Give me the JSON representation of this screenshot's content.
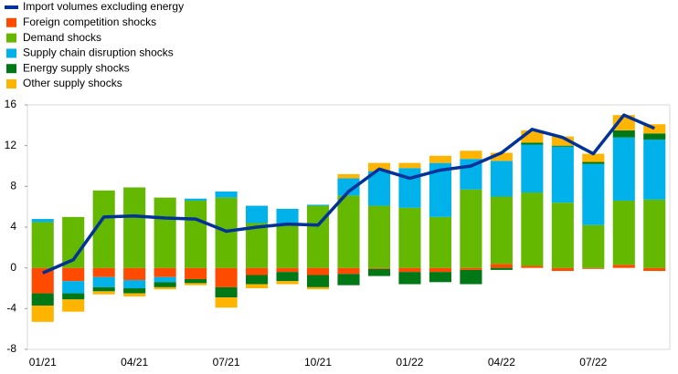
{
  "chart_data": {
    "type": "stacked-bar-line",
    "categories": [
      "01/21",
      null,
      null,
      "04/21",
      null,
      null,
      "07/21",
      null,
      null,
      "10/21",
      null,
      null,
      "01/22",
      null,
      null,
      "04/22",
      null,
      null,
      "07/22",
      null,
      null
    ],
    "line": {
      "name": "Import volumes excluding energy",
      "color": "#003299",
      "values": [
        -0.5,
        0.8,
        5.0,
        5.1,
        4.9,
        4.8,
        3.6,
        4.0,
        4.3,
        4.2,
        7.5,
        9.7,
        8.8,
        9.6,
        10.0,
        11.3,
        13.6,
        12.8,
        11.2,
        15.0,
        13.7
      ]
    },
    "series": [
      {
        "name": "Foreign competition shocks",
        "color": "#ff4b00",
        "values": [
          -2.5,
          -1.3,
          -0.9,
          -1.2,
          -0.9,
          -1.1,
          -1.9,
          -0.7,
          -0.4,
          -0.7,
          -0.6,
          -0.1,
          -0.4,
          -0.4,
          -0.2,
          0.4,
          0.2,
          -0.3,
          -0.1,
          0.3,
          -0.3
        ]
      },
      {
        "name": "Demand shocks",
        "color": "#65b800",
        "values": [
          4.5,
          5.0,
          7.6,
          7.9,
          6.9,
          6.6,
          6.9,
          4.4,
          4.3,
          6.1,
          7.1,
          6.1,
          5.9,
          5.0,
          7.7,
          6.6,
          7.2,
          6.4,
          4.2,
          6.3,
          6.7
        ]
      },
      {
        "name": "Supply chain disruption shocks",
        "color": "#00b1ea",
        "values": [
          0.3,
          -1.2,
          -1.0,
          -0.8,
          -0.5,
          0.2,
          0.6,
          1.7,
          1.5,
          0.1,
          1.7,
          3.4,
          3.9,
          5.3,
          3.0,
          3.5,
          4.7,
          5.5,
          6.0,
          6.2,
          5.9
        ]
      },
      {
        "name": "Energy supply shocks",
        "color": "#007816",
        "values": [
          -1.2,
          -0.6,
          -0.4,
          -0.5,
          -0.5,
          -0.4,
          -1.0,
          -0.9,
          -0.9,
          -1.2,
          -1.1,
          -0.7,
          -1.2,
          -1.0,
          -1.4,
          -0.2,
          0.2,
          0.1,
          0.2,
          0.7,
          0.6
        ]
      },
      {
        "name": "Other supply shocks",
        "color": "#ffb400",
        "values": [
          -1.6,
          -1.2,
          -0.3,
          -0.3,
          -0.2,
          -0.2,
          -1.0,
          -0.4,
          -0.3,
          -0.2,
          0.4,
          0.8,
          0.5,
          0.7,
          0.8,
          0.8,
          1.2,
          0.9,
          0.8,
          1.5,
          0.9
        ]
      }
    ],
    "ylim": [
      -8,
      16
    ],
    "yticks": [
      -8,
      -4,
      0,
      4,
      8,
      12,
      16
    ]
  }
}
